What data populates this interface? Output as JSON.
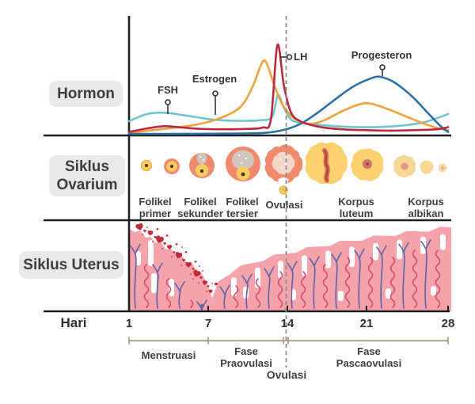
{
  "rows": {
    "hormon": "Hormon",
    "ovarium": "Siklus Ovarium",
    "uterus": "Siklus Uterus"
  },
  "ovarium_stages": [
    {
      "line1": "Folikel",
      "line2": "primer"
    },
    {
      "line1": "Folikel",
      "line2": "sekunder"
    },
    {
      "line1": "Folikel",
      "line2": "tersier"
    },
    {
      "line1": "Ovulasi",
      "line2": ""
    },
    {
      "line1": "Korpus",
      "line2": "luteum"
    },
    {
      "line1": "Korpus",
      "line2": "albikan"
    }
  ],
  "axis": {
    "label": "Hari",
    "days": [
      "1",
      "7",
      "14",
      "21",
      "28"
    ]
  },
  "phases": {
    "menstruasi": "Menstruasi",
    "praovulasi_line1": "Fase",
    "praovulasi_line2": "Praovulasi",
    "pascaovulasi_line1": "Fase",
    "pascaovulasi_line2": "Pascaovulasi",
    "ovulasi": "Ovulasi"
  },
  "colors": {
    "axis": "#1f1f1f",
    "dashed_line": "#8e8e8e",
    "label_pill_bg": "#e9e9e9",
    "text": "#3c3c3c",
    "follicle_ring": "#ef8a6e",
    "oocyte_yellow": "#f6cd5e",
    "oocyte_ring": "#eeb253",
    "oocyte_nucleus": "#4a3322",
    "antrum_gray": "#cfc5bc",
    "corpus_yellow": "#fbd170",
    "corpus_center": "#d96a52",
    "corpus_center_dark": "#a8453c",
    "albikan_yellow": "#f8d795",
    "albikan_center": "#e09a7f",
    "endometrium": "#f4a3ab",
    "gland_white": "#ffffff",
    "vessel_blue": "#5e63a8",
    "vessel_red": "#d84a6e",
    "blood": "#c2293a",
    "bracket": "#a79a87"
  },
  "chart_data": {
    "type": "line",
    "title": "",
    "xlabel": "Hari",
    "ylabel": "",
    "x_range": [
      1,
      28
    ],
    "x_ticks": [
      1,
      7,
      14,
      21,
      28
    ],
    "y_scale": "relative level 0-1 (axis unlabeled)",
    "grid": false,
    "legend_position": "inline pointer labels",
    "ovulation_day_line": 14,
    "series": [
      {
        "name": "FSH",
        "color": "#6ec5cb",
        "points": [
          [
            1,
            0.15
          ],
          [
            2.5,
            0.23
          ],
          [
            4,
            0.245
          ],
          [
            6,
            0.21
          ],
          [
            8,
            0.17
          ],
          [
            10,
            0.155
          ],
          [
            12,
            0.16
          ],
          [
            13.1,
            0.2
          ],
          [
            13.6,
            0.44
          ],
          [
            14.1,
            0.3
          ],
          [
            14.8,
            0.16
          ],
          [
            16,
            0.125
          ],
          [
            18,
            0.1
          ],
          [
            20,
            0.085
          ],
          [
            22,
            0.085
          ],
          [
            24,
            0.1
          ],
          [
            26,
            0.14
          ],
          [
            28,
            0.23
          ]
        ]
      },
      {
        "name": "Estrogen",
        "color": "#f0a03d",
        "points": [
          [
            1,
            0.02
          ],
          [
            3,
            0.05
          ],
          [
            5,
            0.08
          ],
          [
            7,
            0.12
          ],
          [
            9,
            0.2
          ],
          [
            10.5,
            0.32
          ],
          [
            11.5,
            0.55
          ],
          [
            12.2,
            0.79
          ],
          [
            12.6,
            0.81
          ],
          [
            13.3,
            0.55
          ],
          [
            14,
            0.33
          ],
          [
            15,
            0.18
          ],
          [
            16.2,
            0.12
          ],
          [
            17.5,
            0.16
          ],
          [
            19,
            0.26
          ],
          [
            20.5,
            0.34
          ],
          [
            21.5,
            0.345
          ],
          [
            23,
            0.28
          ],
          [
            24.5,
            0.2
          ],
          [
            26,
            0.12
          ],
          [
            27.2,
            0.07
          ],
          [
            28,
            0.05
          ]
        ]
      },
      {
        "name": "LH",
        "color": "#b72a40",
        "points": [
          [
            1,
            0.03
          ],
          [
            2.5,
            0.07
          ],
          [
            4,
            0.095
          ],
          [
            5.5,
            0.08
          ],
          [
            7,
            0.065
          ],
          [
            9,
            0.06
          ],
          [
            11,
            0.065
          ],
          [
            12.3,
            0.08
          ],
          [
            13,
            0.17
          ],
          [
            13.55,
            1.0
          ],
          [
            14.1,
            0.55
          ],
          [
            14.7,
            0.25
          ],
          [
            15.5,
            0.15
          ],
          [
            17,
            0.09
          ],
          [
            19,
            0.06
          ],
          [
            21,
            0.05
          ],
          [
            23,
            0.045
          ],
          [
            25,
            0.05
          ],
          [
            27,
            0.06
          ],
          [
            28,
            0.085
          ]
        ]
      },
      {
        "name": "Progesteron",
        "color": "#2c6fa5",
        "points": [
          [
            1,
            0.008
          ],
          [
            4,
            0.008
          ],
          [
            7,
            0.01
          ],
          [
            10,
            0.012
          ],
          [
            12.5,
            0.02
          ],
          [
            14,
            0.05
          ],
          [
            15.5,
            0.12
          ],
          [
            17,
            0.25
          ],
          [
            18.5,
            0.4
          ],
          [
            20,
            0.54
          ],
          [
            21.5,
            0.63
          ],
          [
            22.3,
            0.645
          ],
          [
            23.5,
            0.58
          ],
          [
            25,
            0.42
          ],
          [
            26.3,
            0.24
          ],
          [
            27.4,
            0.09
          ],
          [
            28,
            0.03
          ]
        ]
      }
    ]
  }
}
